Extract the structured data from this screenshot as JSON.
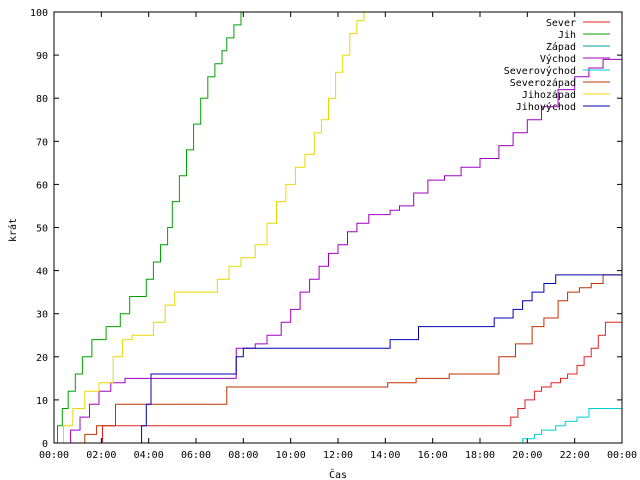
{
  "chart_data": {
    "type": "line",
    "title": "",
    "xlabel": "Čas",
    "ylabel": "krát",
    "xlim": [
      0,
      24
    ],
    "ylim": [
      0,
      100
    ],
    "grid": false,
    "legend_position": "top-right",
    "x_ticks": [
      {
        "value": 0,
        "label": "00:00"
      },
      {
        "value": 2,
        "label": "02:00"
      },
      {
        "value": 4,
        "label": "04:00"
      },
      {
        "value": 6,
        "label": "06:00"
      },
      {
        "value": 8,
        "label": "08:00"
      },
      {
        "value": 10,
        "label": "10:00"
      },
      {
        "value": 12,
        "label": "12:00"
      },
      {
        "value": 14,
        "label": "14:00"
      },
      {
        "value": 16,
        "label": "16:00"
      },
      {
        "value": 18,
        "label": "18:00"
      },
      {
        "value": 20,
        "label": "20:00"
      },
      {
        "value": 22,
        "label": "22:00"
      },
      {
        "value": 24,
        "label": "00:00"
      }
    ],
    "y_ticks": [
      {
        "value": 0,
        "label": "0"
      },
      {
        "value": 10,
        "label": "10"
      },
      {
        "value": 20,
        "label": "20"
      },
      {
        "value": 30,
        "label": "30"
      },
      {
        "value": 40,
        "label": "40"
      },
      {
        "value": 50,
        "label": "50"
      },
      {
        "value": 60,
        "label": "60"
      },
      {
        "value": 70,
        "label": "70"
      },
      {
        "value": 80,
        "label": "80"
      },
      {
        "value": 90,
        "label": "90"
      },
      {
        "value": 100,
        "label": "100"
      }
    ],
    "series": [
      {
        "name": "Sever",
        "color": "#e02020",
        "x": [
          0,
          2.0,
          2.05,
          19.1,
          19.3,
          19.6,
          19.9,
          20.3,
          20.6,
          21.0,
          21.4,
          21.7,
          22.1,
          22.4,
          22.7,
          23.0,
          23.3,
          24
        ],
        "y": [
          0,
          0,
          4,
          4,
          6,
          8,
          10,
          12,
          13,
          14,
          15,
          16,
          18,
          20,
          22,
          25,
          28,
          28
        ]
      },
      {
        "name": "Jih",
        "color": "#00a000",
        "x": [
          0,
          0.15,
          0.35,
          0.6,
          0.9,
          1.2,
          1.6,
          2.2,
          2.8,
          3.2,
          3.9,
          4.2,
          4.5,
          4.8,
          5.0,
          5.3,
          5.6,
          5.9,
          6.2,
          6.5,
          6.8,
          7.1,
          7.3,
          7.6,
          7.9
        ],
        "y": [
          0,
          4,
          8,
          12,
          16,
          20,
          24,
          27,
          30,
          34,
          38,
          42,
          46,
          50,
          56,
          62,
          68,
          74,
          80,
          85,
          88,
          91,
          94,
          97,
          100
        ]
      },
      {
        "name": "Západ",
        "color": "#00a0a0",
        "x": [
          0,
          24
        ],
        "y": [
          0,
          0
        ]
      },
      {
        "name": "Východ",
        "color": "#a000c0",
        "x": [
          0,
          0.7,
          1.1,
          1.5,
          1.9,
          2.4,
          3.0,
          7.4,
          7.7,
          8.5,
          9.0,
          9.6,
          10.0,
          10.4,
          10.8,
          11.2,
          11.6,
          12.0,
          12.4,
          12.8,
          13.3,
          14.2,
          14.6,
          15.2,
          15.8,
          16.5,
          17.2,
          18.0,
          18.8,
          19.4,
          20.0,
          20.6,
          21.3,
          22.0,
          22.6,
          23.2,
          24
        ],
        "y": [
          0,
          3,
          6,
          9,
          12,
          14,
          15,
          15,
          22,
          23,
          25,
          28,
          31,
          35,
          38,
          41,
          44,
          46,
          49,
          51,
          53,
          54,
          55,
          58,
          61,
          62,
          64,
          66,
          69,
          72,
          75,
          78,
          82,
          85,
          87,
          89,
          90
        ]
      },
      {
        "name": "Severovýchod",
        "color": "#00d0d0",
        "x": [
          0,
          19.7,
          19.8,
          20.3,
          20.6,
          21.2,
          21.6,
          22.1,
          22.6,
          24
        ],
        "y": [
          0,
          0,
          1,
          2,
          3,
          4,
          5,
          6,
          8,
          8
        ]
      },
      {
        "name": "Severozápad",
        "color": "#c03000",
        "x": [
          0,
          1.3,
          1.8,
          2.6,
          6.5,
          7.3,
          12.6,
          14.1,
          15.3,
          16.7,
          18.8,
          19.5,
          20.2,
          20.7,
          21.3,
          21.7,
          22.2,
          22.7,
          23.2,
          24
        ],
        "y": [
          0,
          2,
          4,
          9,
          9,
          13,
          13,
          14,
          15,
          16,
          20,
          23,
          27,
          29,
          33,
          35,
          36,
          37,
          39,
          39
        ]
      },
      {
        "name": "Jihozápad",
        "color": "#e8d800",
        "x": [
          0,
          0.4,
          0.8,
          1.3,
          1.9,
          2.5,
          2.9,
          3.3,
          4.2,
          4.7,
          5.1,
          6.4,
          6.9,
          7.4,
          7.9,
          8.5,
          9.0,
          9.4,
          9.8,
          10.2,
          10.6,
          11.0,
          11.3,
          11.6,
          11.9,
          12.2,
          12.5,
          12.8,
          13.1
        ],
        "y": [
          0,
          4,
          8,
          12,
          14,
          20,
          24,
          25,
          28,
          32,
          35,
          35,
          38,
          41,
          43,
          46,
          51,
          56,
          60,
          64,
          67,
          72,
          75,
          80,
          86,
          90,
          95,
          98,
          100
        ]
      },
      {
        "name": "Jihovýchod",
        "color": "#0000b0",
        "x": [
          0,
          3.5,
          3.7,
          3.9,
          4.1,
          7.3,
          7.7,
          8.0,
          11.6,
          14.2,
          15.4,
          18.6,
          19.4,
          19.8,
          20.2,
          20.7,
          21.2,
          22.9,
          23.3,
          24
        ],
        "y": [
          0,
          0,
          4,
          9,
          16,
          16,
          20,
          22,
          22,
          24,
          27,
          29,
          31,
          33,
          35,
          37,
          39,
          39,
          39,
          40
        ]
      }
    ]
  }
}
